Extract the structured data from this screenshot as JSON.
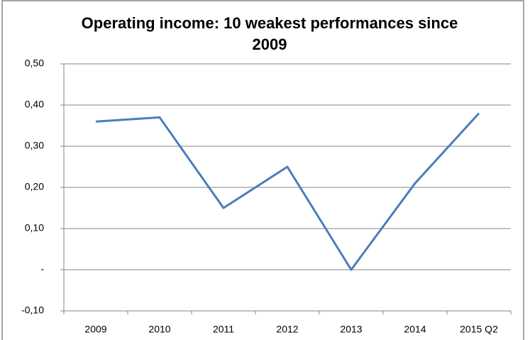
{
  "chart_data": {
    "type": "line",
    "title": "Operating income: 10 weakest performances since 2009",
    "categories": [
      "2009",
      "2010",
      "2011",
      "2012",
      "2013",
      "2014",
      "2015 Q2"
    ],
    "series": [
      {
        "name": "Operating income",
        "color": "#4a7ebb",
        "values": [
          0.36,
          0.37,
          0.15,
          0.25,
          0.0,
          0.21,
          0.38
        ]
      }
    ],
    "ylim": [
      -0.1,
      0.5
    ],
    "yticks": [
      {
        "value": -0.1,
        "label": "-0,10"
      },
      {
        "value": 0,
        "label": "-"
      },
      {
        "value": 0.1,
        "label": "0,10"
      },
      {
        "value": 0.2,
        "label": "0,20"
      },
      {
        "value": 0.3,
        "label": "0,30"
      },
      {
        "value": 0.4,
        "label": "0,40"
      },
      {
        "value": 0.5,
        "label": "0,50"
      }
    ],
    "grid": true
  }
}
